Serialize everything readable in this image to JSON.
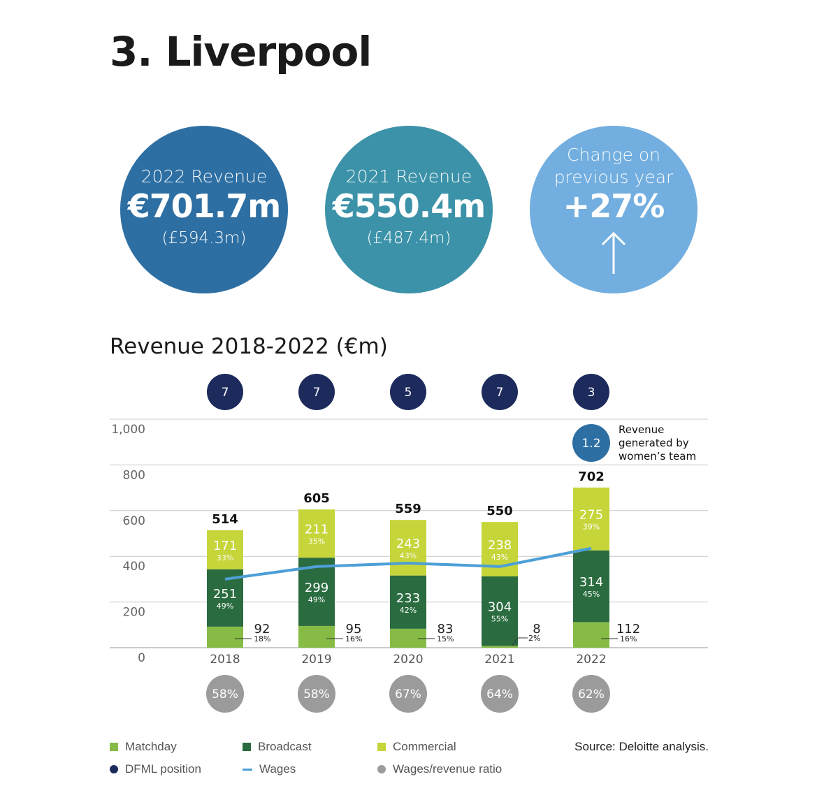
{
  "title": "3. Liverpool",
  "circles": [
    {
      "label": "2022 Revenue",
      "value": "€701.7m",
      "sub": "(£594.3m)",
      "color": "#2e6fa3"
    },
    {
      "label": "2021 Revenue",
      "value": "€550.4m",
      "sub": "(£487.4m)",
      "color": "#3c92a8"
    },
    {
      "label_line1": "Change on",
      "label_line2": "previous year",
      "value": "+27%",
      "icon": "up-arrow-icon",
      "color": "#72aedf"
    }
  ],
  "chart_title": "Revenue 2018-2022 (€m)",
  "source": "Source: Deloitte analysis.",
  "legend": [
    {
      "label": "Matchday",
      "color": "#86bb45",
      "shape": "square"
    },
    {
      "label": "Broadcast",
      "color": "#2a6c3f",
      "shape": "square"
    },
    {
      "label": "Commercial",
      "color": "#c5d53a",
      "shape": "square"
    },
    {
      "label": "DFML position",
      "color": "#1c2a5c",
      "shape": "dot"
    },
    {
      "label": "Wages",
      "color": "#4d9fd6",
      "shape": "line"
    },
    {
      "label": "Wages/revenue ratio",
      "color": "#9b9b9b",
      "shape": "dot"
    }
  ],
  "chart_data": {
    "type": "bar",
    "stacked": true,
    "categories": [
      "2018",
      "2019",
      "2020",
      "2021",
      "2022"
    ],
    "ylim": [
      0,
      1000
    ],
    "yticks": [
      "0",
      "200",
      "400",
      "600",
      "800",
      "1,000"
    ],
    "grid": true,
    "series": [
      {
        "name": "Matchday",
        "values": [
          92,
          95,
          83,
          8,
          112
        ],
        "pct": [
          "18%",
          "16%",
          "15%",
          "2%",
          "16%"
        ],
        "color": "#86bb45"
      },
      {
        "name": "Broadcast",
        "values": [
          251,
          299,
          233,
          304,
          314
        ],
        "pct": [
          "49%",
          "49%",
          "42%",
          "55%",
          "45%"
        ],
        "color": "#2a6c3f"
      },
      {
        "name": "Commercial",
        "values": [
          171,
          211,
          243,
          238,
          275
        ],
        "pct": [
          "33%",
          "35%",
          "43%",
          "43%",
          "39%"
        ],
        "color": "#c5d53a"
      }
    ],
    "totals": [
      "514",
      "605",
      "559",
      "550",
      "702"
    ],
    "wages_line": {
      "name": "Wages",
      "values": [
        300,
        355,
        370,
        355,
        435
      ],
      "color": "#4d9fd6"
    },
    "dfml_position": [
      "7",
      "7",
      "5",
      "7",
      "3"
    ],
    "wages_revenue_ratio": [
      "58%",
      "58%",
      "67%",
      "64%",
      "62%"
    ],
    "womens_team": {
      "value": "1.2",
      "label_lines": [
        "Revenue",
        "generated by",
        "women’s team"
      ]
    }
  }
}
